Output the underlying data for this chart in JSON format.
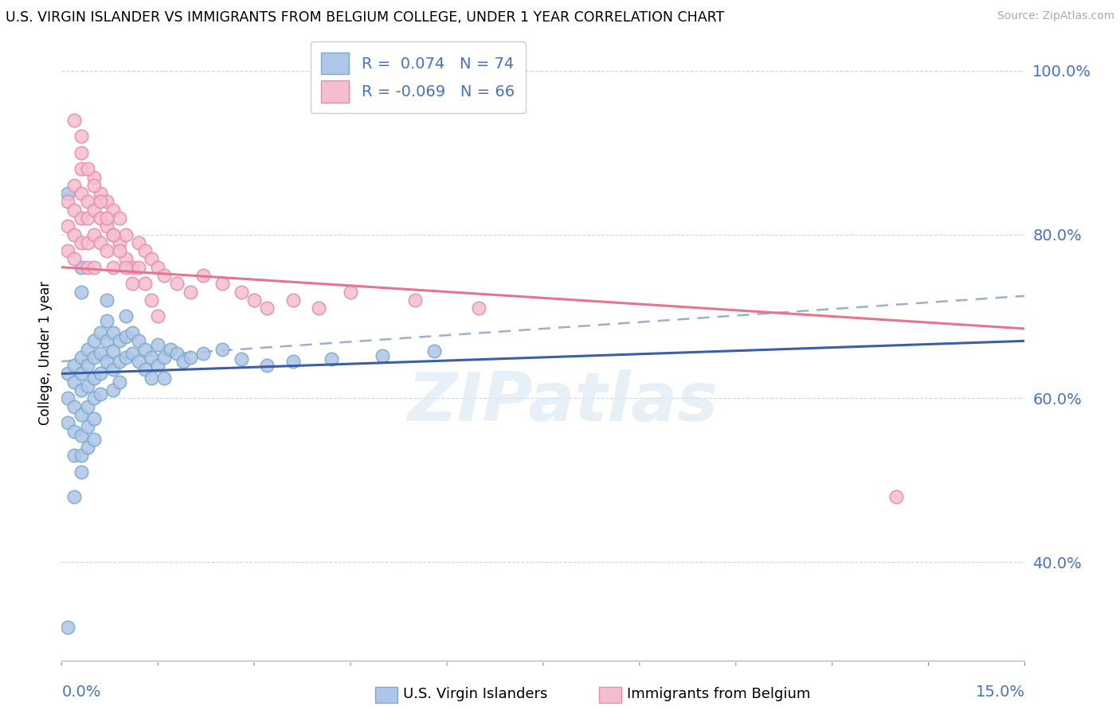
{
  "title": "U.S. VIRGIN ISLANDER VS IMMIGRANTS FROM BELGIUM COLLEGE, UNDER 1 YEAR CORRELATION CHART",
  "source": "Source: ZipAtlas.com",
  "ylabel": "College, Under 1 year",
  "xmin": 0.0,
  "xmax": 0.15,
  "ymin": 0.28,
  "ymax": 1.03,
  "yticks": [
    0.4,
    0.6,
    0.8,
    1.0
  ],
  "ytick_labels": [
    "40.0%",
    "60.0%",
    "80.0%",
    "100.0%"
  ],
  "legend_r1": "R =  0.074",
  "legend_n1": "N = 74",
  "legend_r2": "R = -0.069",
  "legend_n2": "N = 66",
  "blue_color": "#aec6e8",
  "blue_edge": "#7aaac8",
  "pink_color": "#f5bdd0",
  "pink_edge": "#e88aaa",
  "blue_line_color": "#3a5fa8",
  "pink_line_color": "#e8748c",
  "dash_line_color": "#9ab0cc",
  "watermark": "ZIPatlas",
  "blue_trend_x0": 0.0,
  "blue_trend_y0": 0.63,
  "blue_trend_x1": 0.15,
  "blue_trend_y1": 0.67,
  "pink_trend_x0": 0.0,
  "pink_trend_y0": 0.76,
  "pink_trend_x1": 0.15,
  "pink_trend_y1": 0.685,
  "dash_trend_x0": 0.0,
  "dash_trend_y0": 0.645,
  "dash_trend_x1": 0.15,
  "dash_trend_y1": 0.725,
  "blue_x": [
    0.001,
    0.001,
    0.001,
    0.002,
    0.002,
    0.002,
    0.002,
    0.002,
    0.003,
    0.003,
    0.003,
    0.003,
    0.003,
    0.003,
    0.003,
    0.004,
    0.004,
    0.004,
    0.004,
    0.004,
    0.004,
    0.005,
    0.005,
    0.005,
    0.005,
    0.005,
    0.005,
    0.006,
    0.006,
    0.006,
    0.006,
    0.007,
    0.007,
    0.007,
    0.007,
    0.008,
    0.008,
    0.008,
    0.008,
    0.009,
    0.009,
    0.009,
    0.01,
    0.01,
    0.01,
    0.011,
    0.011,
    0.012,
    0.012,
    0.013,
    0.013,
    0.014,
    0.014,
    0.015,
    0.015,
    0.016,
    0.016,
    0.017,
    0.018,
    0.019,
    0.02,
    0.022,
    0.025,
    0.028,
    0.032,
    0.036,
    0.042,
    0.05,
    0.058,
    0.001,
    0.002,
    0.003,
    0.003,
    0.001
  ],
  "blue_y": [
    0.63,
    0.6,
    0.57,
    0.64,
    0.62,
    0.59,
    0.56,
    0.53,
    0.65,
    0.63,
    0.61,
    0.58,
    0.555,
    0.53,
    0.51,
    0.66,
    0.64,
    0.615,
    0.59,
    0.565,
    0.54,
    0.67,
    0.65,
    0.625,
    0.6,
    0.575,
    0.55,
    0.68,
    0.655,
    0.63,
    0.605,
    0.72,
    0.695,
    0.67,
    0.645,
    0.68,
    0.658,
    0.635,
    0.61,
    0.67,
    0.645,
    0.62,
    0.7,
    0.675,
    0.65,
    0.68,
    0.655,
    0.67,
    0.645,
    0.66,
    0.635,
    0.65,
    0.625,
    0.64,
    0.665,
    0.65,
    0.625,
    0.66,
    0.655,
    0.645,
    0.65,
    0.655,
    0.66,
    0.648,
    0.64,
    0.645,
    0.648,
    0.652,
    0.658,
    0.32,
    0.48,
    0.76,
    0.73,
    0.85
  ],
  "pink_x": [
    0.001,
    0.001,
    0.001,
    0.002,
    0.002,
    0.002,
    0.002,
    0.003,
    0.003,
    0.003,
    0.003,
    0.004,
    0.004,
    0.004,
    0.004,
    0.005,
    0.005,
    0.005,
    0.005,
    0.006,
    0.006,
    0.006,
    0.007,
    0.007,
    0.007,
    0.008,
    0.008,
    0.008,
    0.009,
    0.009,
    0.01,
    0.01,
    0.011,
    0.012,
    0.013,
    0.014,
    0.015,
    0.016,
    0.018,
    0.02,
    0.022,
    0.025,
    0.028,
    0.03,
    0.032,
    0.036,
    0.04,
    0.045,
    0.055,
    0.065,
    0.003,
    0.004,
    0.005,
    0.006,
    0.007,
    0.008,
    0.009,
    0.01,
    0.011,
    0.012,
    0.013,
    0.014,
    0.015,
    0.002,
    0.003,
    0.13
  ],
  "pink_y": [
    0.78,
    0.81,
    0.84,
    0.77,
    0.8,
    0.83,
    0.86,
    0.79,
    0.82,
    0.85,
    0.88,
    0.79,
    0.82,
    0.76,
    0.84,
    0.8,
    0.83,
    0.76,
    0.87,
    0.79,
    0.82,
    0.85,
    0.78,
    0.81,
    0.84,
    0.8,
    0.83,
    0.76,
    0.79,
    0.82,
    0.77,
    0.8,
    0.76,
    0.79,
    0.78,
    0.77,
    0.76,
    0.75,
    0.74,
    0.73,
    0.75,
    0.74,
    0.73,
    0.72,
    0.71,
    0.72,
    0.71,
    0.73,
    0.72,
    0.71,
    0.9,
    0.88,
    0.86,
    0.84,
    0.82,
    0.8,
    0.78,
    0.76,
    0.74,
    0.76,
    0.74,
    0.72,
    0.7,
    0.94,
    0.92,
    0.48
  ]
}
